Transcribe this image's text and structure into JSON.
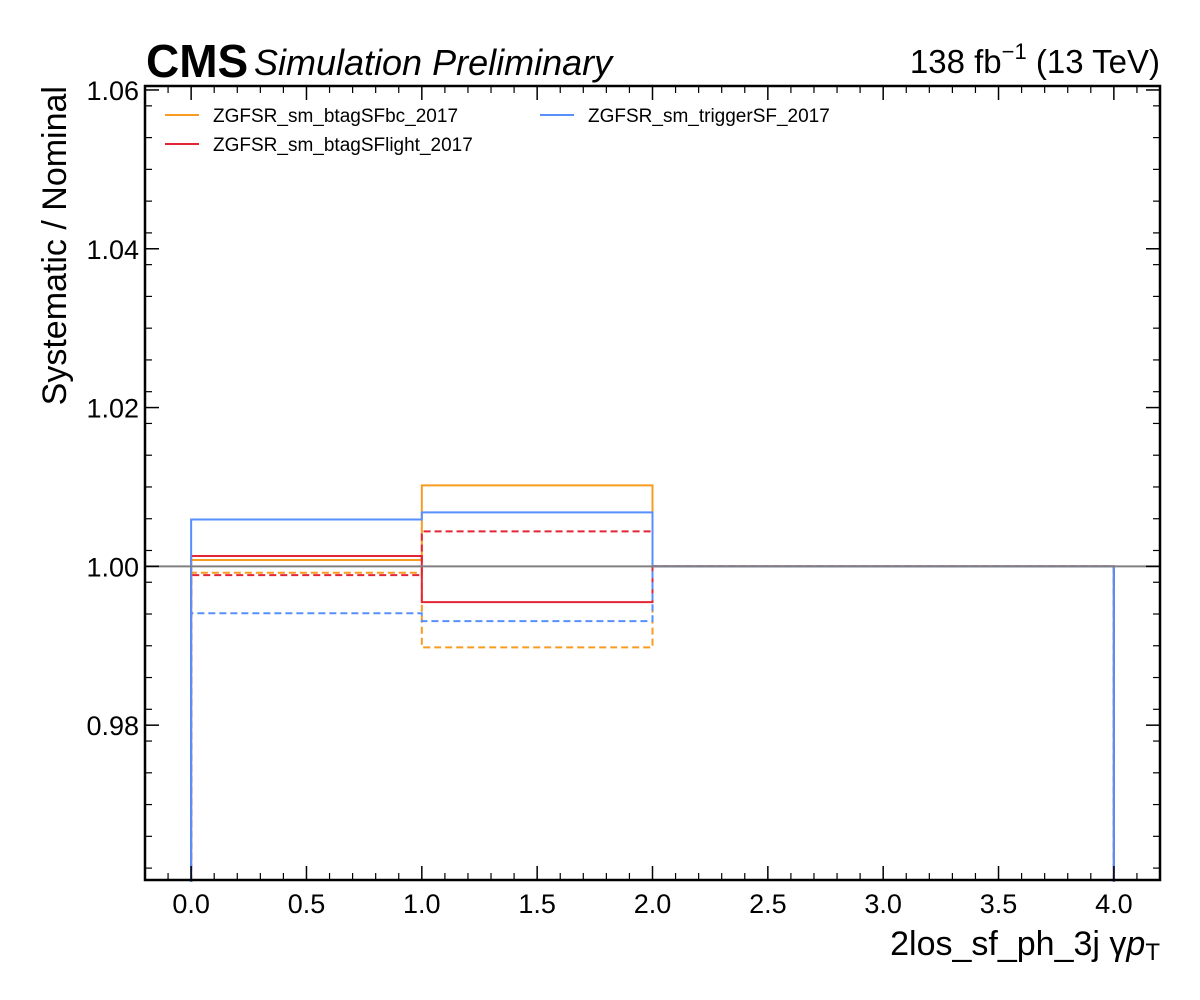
{
  "header": {
    "experiment": "CMS",
    "extra": "Simulation Preliminary",
    "lumi_value": "138 fb",
    "lumi_exponent": "−1",
    "lumi_energy": " (13 TeV)"
  },
  "chart_data": {
    "type": "line",
    "drawstyle": "steps",
    "xlabel": "2los_sf_ph_3j   γ",
    "xlabel_math": "p",
    "xlabel_sub": "T",
    "ylabel": "Systematic / Nominal",
    "xlim": [
      -0.2,
      4.2
    ],
    "ylim": [
      0.9605,
      1.0605
    ],
    "x_ticks": [
      0.0,
      0.5,
      1.0,
      1.5,
      2.0,
      2.5,
      3.0,
      3.5,
      4.0
    ],
    "x_tick_labels": [
      "0.0",
      "0.5",
      "1.0",
      "1.5",
      "2.0",
      "2.5",
      "3.0",
      "3.5",
      "4.0"
    ],
    "y_ticks": [
      0.98,
      1.0,
      1.02,
      1.04,
      1.06
    ],
    "y_tick_labels": [
      "0.98",
      "1.00",
      "1.02",
      "1.04",
      "1.06"
    ],
    "reference_line": {
      "y": 1.0,
      "color": "#808080"
    },
    "bin_edges": [
      0,
      1,
      2,
      3,
      4
    ],
    "legend": {
      "placement": "top-left",
      "columns": 2
    },
    "series": [
      {
        "name": "ZGFSR_sm_btagSFbc_2017",
        "color": "#f89c20",
        "variation": "up",
        "values": [
          1.0008,
          1.0102,
          1.0,
          1.0
        ]
      },
      {
        "name": "",
        "color": "#f89c20",
        "variation": "down",
        "values": [
          0.9992,
          0.9898,
          1.0,
          1.0
        ]
      },
      {
        "name": "ZGFSR_sm_btagSFlight_2017",
        "color": "#e42536",
        "variation": "up",
        "values": [
          1.0013,
          0.9955,
          1.0,
          1.0
        ]
      },
      {
        "name": "",
        "color": "#e42536",
        "variation": "down",
        "values": [
          0.9989,
          1.0044,
          1.0,
          1.0
        ]
      },
      {
        "name": "ZGFSR_sm_triggerSF_2017",
        "color": "#5790fc",
        "variation": "up",
        "values": [
          1.0059,
          1.0068,
          1.0,
          1.0
        ]
      },
      {
        "name": "",
        "color": "#5790fc",
        "variation": "down",
        "values": [
          0.9941,
          0.9931,
          1.0,
          1.0
        ]
      }
    ]
  }
}
